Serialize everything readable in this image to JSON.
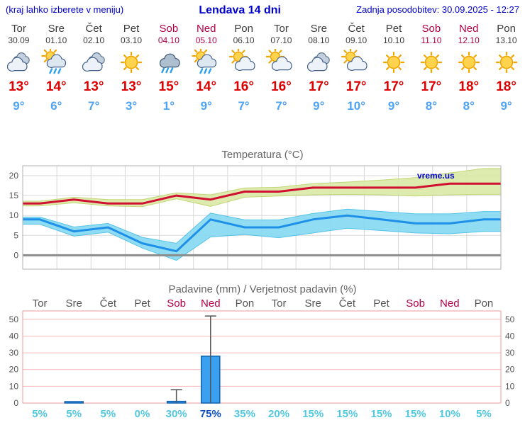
{
  "header": {
    "hint": "(kraj lahko izberete v meniju)",
    "title": "Lendava 14 dni",
    "updated": "Zadnja posodobitev: 30.09.2025 - 12:27"
  },
  "colors": {
    "link_blue": "#0000cc",
    "weekday_text": "#3c3c3c",
    "weekend_text": "#b30045",
    "high_temp": "#dd0000",
    "low_temp": "#4da3f5",
    "grid_gray": "#d8d8d8",
    "grid_pink": "#f6bcbc",
    "zero_line": "#8c8c8c"
  },
  "days": [
    {
      "name": "Tor",
      "date": "30.09",
      "weekend": false,
      "icon": "cloudy",
      "high": "13°",
      "low": "9°"
    },
    {
      "name": "Sre",
      "date": "01.10",
      "weekend": false,
      "icon": "sun-cloud-rain",
      "high": "14°",
      "low": "6°"
    },
    {
      "name": "Čet",
      "date": "02.10",
      "weekend": false,
      "icon": "cloudy",
      "high": "13°",
      "low": "7°"
    },
    {
      "name": "Pet",
      "date": "03.10",
      "weekend": false,
      "icon": "sunny",
      "high": "13°",
      "low": "3°"
    },
    {
      "name": "Sob",
      "date": "04.10",
      "weekend": true,
      "icon": "rain",
      "high": "15°",
      "low": "1°"
    },
    {
      "name": "Ned",
      "date": "05.10",
      "weekend": true,
      "icon": "sun-cloud-rain",
      "high": "14°",
      "low": "9°"
    },
    {
      "name": "Pon",
      "date": "06.10",
      "weekend": false,
      "icon": "sun-cloud",
      "high": "16°",
      "low": "7°"
    },
    {
      "name": "Tor",
      "date": "07.10",
      "weekend": false,
      "icon": "sun-cloud",
      "high": "16°",
      "low": "7°"
    },
    {
      "name": "Sre",
      "date": "08.10",
      "weekend": false,
      "icon": "cloudy",
      "high": "17°",
      "low": "9°"
    },
    {
      "name": "Čet",
      "date": "09.10",
      "weekend": false,
      "icon": "sun-cloud",
      "high": "17°",
      "low": "10°"
    },
    {
      "name": "Pet",
      "date": "10.10",
      "weekend": false,
      "icon": "sunny",
      "high": "17°",
      "low": "9°"
    },
    {
      "name": "Sob",
      "date": "11.10",
      "weekend": true,
      "icon": "sunny",
      "high": "17°",
      "low": "8°"
    },
    {
      "name": "Ned",
      "date": "12.10",
      "weekend": true,
      "icon": "sunny",
      "high": "18°",
      "low": "8°"
    },
    {
      "name": "Pon",
      "date": "13.10",
      "weekend": false,
      "icon": "sunny",
      "high": "18°",
      "low": "9°"
    }
  ],
  "chart_data": [
    {
      "type": "line",
      "title": "Temperatura (°C)",
      "watermark": "vreme.us",
      "ylim": [
        -3.5,
        22.5
      ],
      "y_ticks": [
        0,
        5,
        10,
        15,
        20
      ],
      "series": [
        {
          "name": "max",
          "color": "#d01030",
          "values": [
            13,
            14,
            13,
            13,
            15,
            14,
            16,
            16,
            17,
            17,
            17,
            17,
            18,
            18
          ]
        },
        {
          "name": "max_range_hi",
          "values": [
            13.6,
            14.6,
            14,
            14,
            15.7,
            15.2,
            16.9,
            17.1,
            18,
            18.4,
            18.9,
            19.5,
            20.7,
            21.8
          ]
        },
        {
          "name": "max_range_lo",
          "values": [
            12.4,
            13.2,
            12.4,
            12.2,
            14.2,
            12.3,
            14.6,
            14.9,
            15.2,
            15.3,
            15.2,
            14.9,
            15.2,
            15.3
          ]
        },
        {
          "name": "min",
          "color": "#1e90e8",
          "values": [
            9,
            6,
            7,
            3,
            1,
            9,
            7,
            7,
            9,
            10,
            9,
            8,
            8,
            9
          ]
        },
        {
          "name": "min_range_hi",
          "values": [
            9.6,
            7.1,
            8,
            4.5,
            3,
            10.6,
            8.9,
            8.9,
            10.5,
            11.6,
            11,
            10.4,
            10.4,
            11
          ]
        },
        {
          "name": "min_range_lo",
          "values": [
            7.8,
            4.8,
            5.8,
            1.8,
            -1.3,
            4.6,
            5.2,
            4.4,
            5.6,
            6.8,
            6.2,
            5.6,
            5.4,
            6
          ]
        }
      ],
      "band_colors": {
        "max": "#dbe9a6",
        "min": "#85d9f2"
      },
      "band_edge_colors": {
        "max": "#bcd26a",
        "min": "#45bde6"
      }
    },
    {
      "type": "bar",
      "title": "Padavine (mm) / Verjetnost padavin (%)",
      "ylim": [
        0,
        55
      ],
      "y_ticks": [
        0,
        10,
        20,
        30,
        40,
        50
      ],
      "bars_mm": [
        0,
        0.4,
        0,
        0,
        1,
        28,
        0,
        0,
        0,
        0,
        0,
        0,
        0,
        0
      ],
      "whiskers": [
        {
          "day_index": 4,
          "hi": 8
        },
        {
          "day_index": 5,
          "hi": 52
        }
      ],
      "probabilities": [
        "5%",
        "5%",
        "5%",
        "0%",
        "30%",
        "75%",
        "35%",
        "20%",
        "15%",
        "15%",
        "15%",
        "15%",
        "10%",
        "5%"
      ],
      "bar_color": "#3aa0f0",
      "bar_edge_color": "#1060b0",
      "prob_color": "#4fc8e0",
      "prob_strong_color": "#0b4fc0"
    }
  ]
}
